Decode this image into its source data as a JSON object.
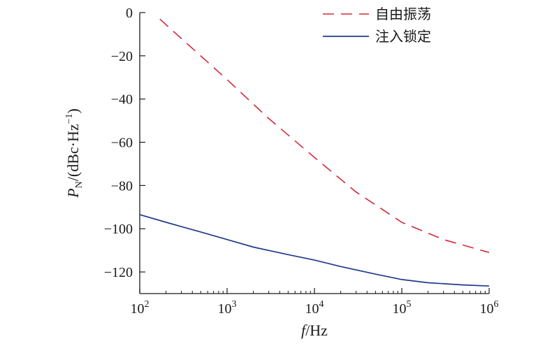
{
  "chart_data": {
    "type": "line",
    "xscale": "log",
    "xlim": [
      100,
      1000000
    ],
    "ylim": [
      -130,
      0
    ],
    "xticks": [
      100,
      1000,
      10000,
      100000,
      1000000
    ],
    "xtick_labels": [
      {
        "base": "10",
        "exp": "2"
      },
      {
        "base": "10",
        "exp": "3"
      },
      {
        "base": "10",
        "exp": "4"
      },
      {
        "base": "10",
        "exp": "5"
      },
      {
        "base": "10",
        "exp": "6"
      }
    ],
    "yticks": [
      0,
      -20,
      -40,
      -60,
      -80,
      -100,
      -120
    ],
    "ytick_labels": [
      "0",
      "−20",
      "−40",
      "−60",
      "−80",
      "−100",
      "−120"
    ],
    "xlabel": {
      "italic": "f",
      "rest": "/Hz"
    },
    "ylabel": {
      "italic": "P",
      "sub": "N",
      "rest": "/(dBc·Hz",
      "sup": "−1",
      "tail": ")"
    },
    "grid": false,
    "legend_position": "top-right",
    "series": [
      {
        "name": "自由振荡",
        "color": "#d6283a",
        "style": "dashed",
        "x": [
          170,
          300,
          1000,
          3000,
          10000,
          30000,
          100000,
          300000,
          1000000
        ],
        "y": [
          -3,
          -12,
          -31,
          -49,
          -67,
          -83,
          -97,
          -105,
          -111
        ]
      },
      {
        "name": "注入锁定",
        "color": "#1f3a8c",
        "style": "solid",
        "x": [
          100,
          200,
          500,
          1000,
          2000,
          5000,
          10000,
          20000,
          50000,
          100000,
          200000,
          500000,
          1000000
        ],
        "y": [
          -93.5,
          -97,
          -101.5,
          -105,
          -108.5,
          -112,
          -114.5,
          -117.5,
          -121,
          -123.5,
          -125,
          -126,
          -126.5
        ]
      }
    ]
  }
}
